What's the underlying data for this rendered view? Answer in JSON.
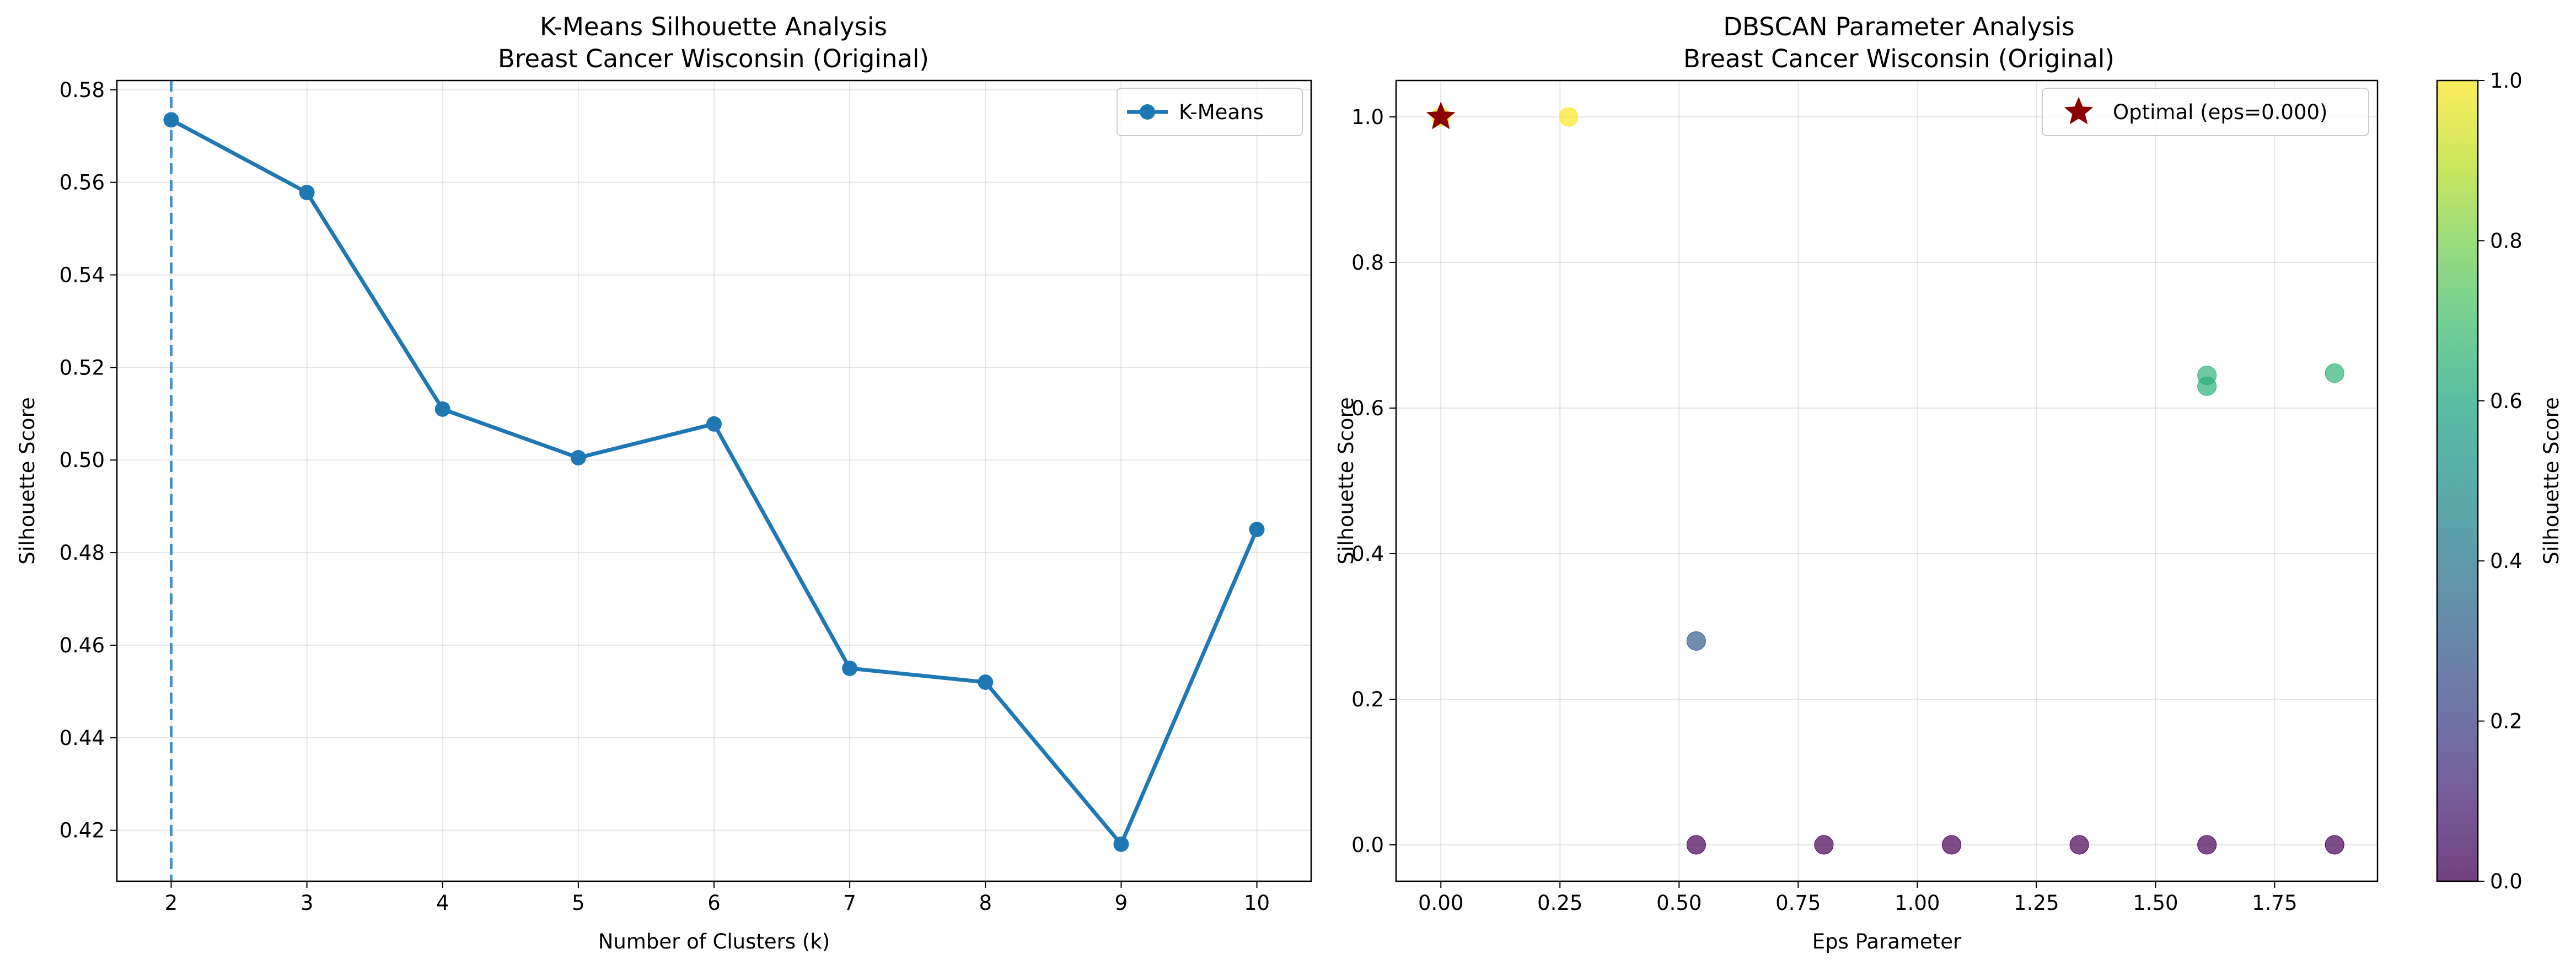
{
  "chart_data": [
    {
      "type": "line",
      "title": "K-Means Silhouette Analysis\nBreast Cancer Wisconsin (Original)",
      "title_lines": [
        "K-Means Silhouette Analysis",
        "Breast Cancer Wisconsin (Original)"
      ],
      "xlabel": "Number of Clusters (k)",
      "ylabel": "Silhouette Score",
      "xlim": [
        1.6,
        10.4
      ],
      "ylim": [
        0.409,
        0.582
      ],
      "xticks": [
        2,
        3,
        4,
        5,
        6,
        7,
        8,
        9,
        10
      ],
      "yticks": [
        0.42,
        0.44,
        0.46,
        0.48,
        0.5,
        0.52,
        0.54,
        0.56,
        0.58
      ],
      "ytick_labels": [
        "0.42",
        "0.44",
        "0.46",
        "0.48",
        "0.50",
        "0.52",
        "0.54",
        "0.56",
        "0.58"
      ],
      "grid": true,
      "legend_position": "top-right",
      "series": [
        {
          "name": "K-Means",
          "color": "#1f77b4",
          "x": [
            2,
            3,
            4,
            5,
            6,
            7,
            8,
            9,
            10
          ],
          "y": [
            0.5735,
            0.5578,
            0.511,
            0.5005,
            0.5078,
            0.455,
            0.452,
            0.417,
            0.485
          ]
        }
      ],
      "reference_line": {
        "axis": "x",
        "value": 2,
        "style": "dashed",
        "color": "#1f77b4"
      }
    },
    {
      "type": "scatter",
      "title": "DBSCAN Parameter Analysis\nBreast Cancer Wisconsin (Original)",
      "title_lines": [
        "DBSCAN Parameter Analysis",
        "Breast Cancer Wisconsin (Original)"
      ],
      "xlabel": "Eps Parameter",
      "ylabel": "Silhouette Score",
      "xlim": [
        -0.094,
        1.966
      ],
      "ylim": [
        -0.05,
        1.05
      ],
      "xticks": [
        0,
        0.25,
        0.5,
        0.75,
        1.0,
        1.25,
        1.5,
        1.75
      ],
      "xtick_labels": [
        "0.00",
        "0.25",
        "0.50",
        "0.75",
        "1.00",
        "1.25",
        "1.50",
        "1.75"
      ],
      "yticks": [
        0,
        0.2,
        0.4,
        0.6,
        0.8,
        1.0
      ],
      "ytick_labels": [
        "0.0",
        "0.2",
        "0.4",
        "0.6",
        "0.8",
        "1.0"
      ],
      "grid": true,
      "legend_position": "top-right",
      "colormap": "viridis",
      "colorbar": {
        "label": "Silhouette Score",
        "range": [
          0,
          1
        ],
        "ticks": [
          0,
          0.2,
          0.4,
          0.6,
          0.8,
          1.0
        ],
        "tick_labels": [
          "0.0",
          "0.2",
          "0.4",
          "0.6",
          "0.8",
          "1.0"
        ]
      },
      "points": [
        {
          "x": 0.0,
          "y": 1.0
        },
        {
          "x": 0.268,
          "y": 1.0
        },
        {
          "x": 0.536,
          "y": 0.28
        },
        {
          "x": 0.536,
          "y": 0.0
        },
        {
          "x": 0.804,
          "y": 0.0
        },
        {
          "x": 1.072,
          "y": 0.0
        },
        {
          "x": 1.34,
          "y": 0.0
        },
        {
          "x": 1.608,
          "y": 0.645
        },
        {
          "x": 1.608,
          "y": 0.63
        },
        {
          "x": 1.608,
          "y": 0.0
        },
        {
          "x": 1.876,
          "y": 0.648
        },
        {
          "x": 1.876,
          "y": 0.0
        }
      ],
      "optimal": {
        "name": "Optimal (eps=0.000)",
        "x": 0.0,
        "y": 1.0,
        "color": "#8b0000",
        "marker": "star"
      }
    }
  ]
}
